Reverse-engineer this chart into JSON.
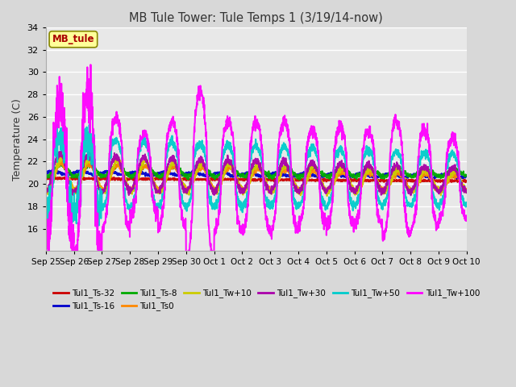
{
  "title": "MB Tule Tower: Tule Temps 1 (3/19/14-now)",
  "ylabel": "Temperature (C)",
  "ylim": [
    14,
    34
  ],
  "yticks": [
    16,
    18,
    20,
    22,
    24,
    26,
    28,
    30,
    32,
    34
  ],
  "background_color": "#d8d8d8",
  "plot_bg_color": "#e8e8e8",
  "legend_label": "MB_tule",
  "series": [
    {
      "name": "Tul1_Ts-32",
      "color": "#cc0000",
      "lw": 1.5
    },
    {
      "name": "Tul1_Ts-16",
      "color": "#0000cc",
      "lw": 1.5
    },
    {
      "name": "Tul1_Ts-8",
      "color": "#00aa00",
      "lw": 1.5
    },
    {
      "name": "Tul1_Ts0",
      "color": "#ff8800",
      "lw": 1.5
    },
    {
      "name": "Tul1_Tw+10",
      "color": "#cccc00",
      "lw": 1.5
    },
    {
      "name": "Tul1_Tw+30",
      "color": "#aa00aa",
      "lw": 1.5
    },
    {
      "name": "Tul1_Tw+50",
      "color": "#00cccc",
      "lw": 1.5
    },
    {
      "name": "Tul1_Tw+100",
      "color": "#ff00ff",
      "lw": 1.5
    }
  ],
  "xtick_labels": [
    "Sep 25",
    "Sep 26",
    "Sep 27",
    "Sep 28",
    "Sep 29",
    "Sep 30",
    "Oct 1",
    "Oct 2",
    "Oct 3",
    "Oct 4",
    "Oct 5",
    "Oct 6",
    "Oct 7",
    "Oct 8",
    "Oct 9",
    "Oct 10"
  ],
  "n_days": 15,
  "pts_per_day": 144
}
